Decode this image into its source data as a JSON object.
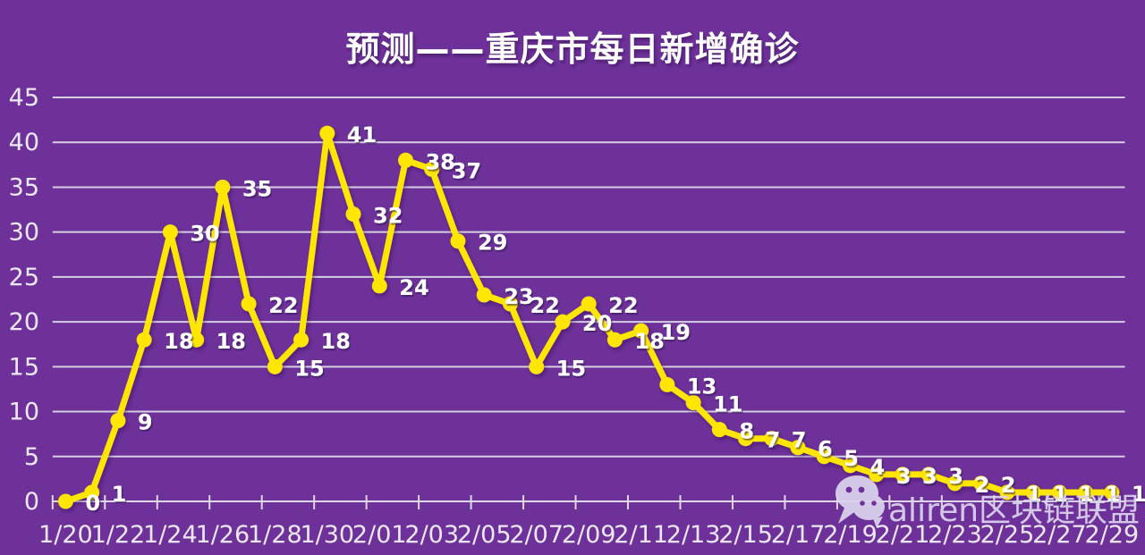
{
  "title": "预测——重庆市每日新增确诊",
  "colors": {
    "background": "#6E3199",
    "line": "#FFE600",
    "grid": "#D6CFE2",
    "axis_line": "#DDD7E8",
    "axis_text": "#EDE8F7",
    "point_label_text": "#FFFFFF",
    "title_text": "#FFFFFF",
    "watermark": "#DCD4EE"
  },
  "watermark": {
    "text": "aliren区块链联盟",
    "icon": "wechat-icon"
  },
  "chart_data": {
    "type": "line",
    "title": "预测——重庆市每日新增确诊",
    "x": [
      "1/20",
      "1/21",
      "1/22",
      "1/23",
      "1/24",
      "1/25",
      "1/26",
      "1/27",
      "1/28",
      "1/29",
      "1/30",
      "1/31",
      "2/01",
      "2/02",
      "2/03",
      "2/04",
      "2/05",
      "2/06",
      "2/07",
      "2/08",
      "2/09",
      "2/10",
      "2/11",
      "2/12",
      "2/13",
      "2/14",
      "2/15",
      "2/16",
      "2/17",
      "2/18",
      "2/19",
      "2/20",
      "2/21",
      "2/22",
      "2/23",
      "2/24",
      "2/25",
      "2/26",
      "2/27",
      "2/28",
      "2/29"
    ],
    "values": [
      0,
      1,
      9,
      18,
      30,
      18,
      35,
      22,
      15,
      18,
      41,
      32,
      24,
      38,
      37,
      29,
      23,
      22,
      15,
      20,
      22,
      18,
      19,
      13,
      11,
      8,
      7,
      7,
      6,
      5,
      4,
      3,
      3,
      3,
      2,
      2,
      1,
      1,
      1,
      1,
      1
    ],
    "x_tick_labels": [
      "1/20",
      "1/22",
      "1/24",
      "1/26",
      "1/28",
      "1/30",
      "2/01",
      "2/03",
      "2/05",
      "2/07",
      "2/09",
      "2/11",
      "2/13",
      "2/15",
      "2/17",
      "2/19",
      "2/21",
      "2/23",
      "2/25",
      "2/27",
      "2/29"
    ],
    "x_tick_every": 2,
    "y_ticks": [
      0,
      5,
      10,
      15,
      20,
      25,
      30,
      35,
      40,
      45
    ],
    "ylim": [
      0,
      45
    ],
    "grid": true,
    "legend": false,
    "point_labels_shown": true
  }
}
